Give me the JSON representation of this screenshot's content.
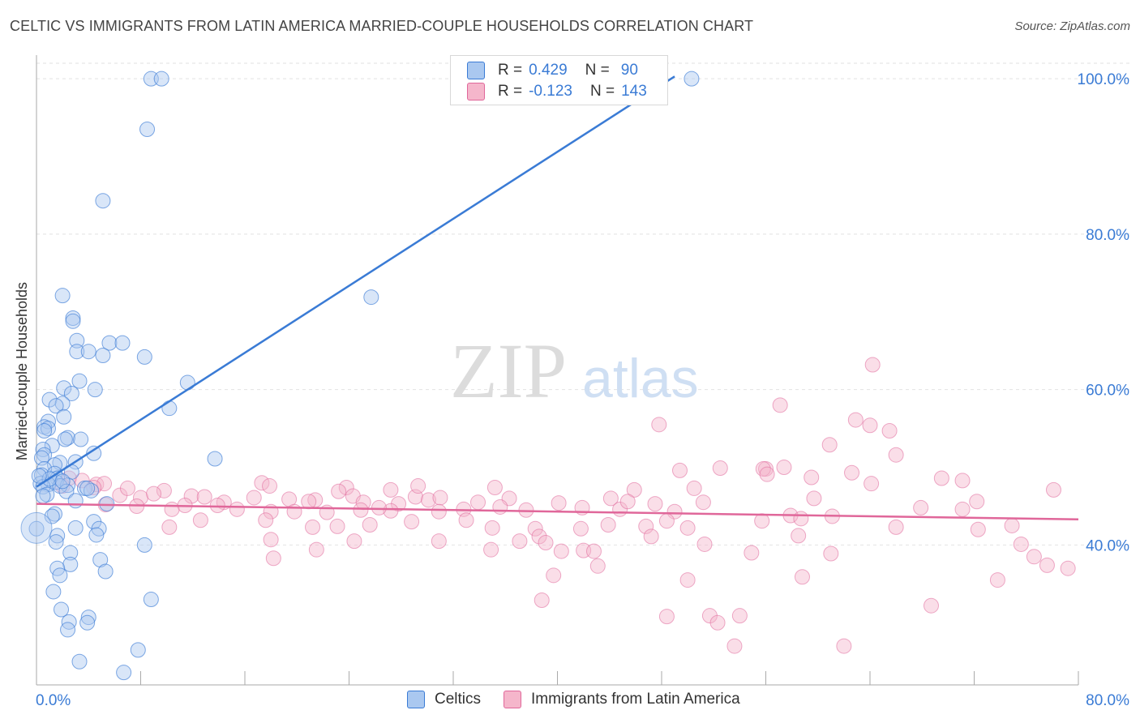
{
  "header": {
    "title": "CELTIC VS IMMIGRANTS FROM LATIN AMERICA MARRIED-COUPLE HOUSEHOLDS CORRELATION CHART",
    "source": "Source: ZipAtlas.com"
  },
  "watermark": {
    "zip": "ZIP",
    "atlas": "atlas"
  },
  "colors": {
    "blue": "#3a7bd5",
    "blue_fill": "#aac8f0",
    "pink": "#e0679a",
    "pink_fill": "#f5b6cb",
    "grid": "#e2e2e2",
    "axis_label": "#3a7bd5"
  },
  "legend": {
    "r_label": "R =",
    "n_label": "N =",
    "rows": [
      {
        "name": "Celtics",
        "r": "0.429",
        "n": "90",
        "color": "#aac8f0",
        "stroke": "#3a7bd5"
      },
      {
        "name": "Immigrants from Latin America",
        "r": "-0.123",
        "n": "143",
        "color": "#f5b6cb",
        "stroke": "#e0679a"
      }
    ]
  },
  "chart_data": {
    "type": "scatter",
    "title": "CELTIC VS IMMIGRANTS FROM LATIN AMERICA MARRIED-COUPLE HOUSEHOLDS CORRELATION CHART",
    "xlabel": "",
    "ylabel": "Married-couple Households",
    "xlim": [
      0,
      80
    ],
    "ylim": [
      22,
      102
    ],
    "x_tick_labels": [
      "0.0%",
      "80.0%"
    ],
    "y_ticks": [
      40,
      60,
      80,
      100
    ],
    "y_tick_labels": [
      "40.0%",
      "60.0%",
      "80.0%",
      "100.0%"
    ],
    "grid": true,
    "series": [
      {
        "name": "Celtics",
        "r": 0.429,
        "n": 90,
        "trend": [
          [
            0.0,
            47.5
          ],
          [
            49.0,
            100.3
          ]
        ],
        "points": [
          [
            8.8,
            100
          ],
          [
            9.6,
            100
          ],
          [
            50.3,
            100
          ],
          [
            8.5,
            93.5
          ],
          [
            5.1,
            84.3
          ],
          [
            2.0,
            72.1
          ],
          [
            25.7,
            71.9
          ],
          [
            2.8,
            69.2
          ],
          [
            2.8,
            68.8
          ],
          [
            3.1,
            66.3
          ],
          [
            5.6,
            66.0
          ],
          [
            6.6,
            66.0
          ],
          [
            3.1,
            64.9
          ],
          [
            4.0,
            64.9
          ],
          [
            5.1,
            64.4
          ],
          [
            8.3,
            64.2
          ],
          [
            3.3,
            61.1
          ],
          [
            11.6,
            60.9
          ],
          [
            2.1,
            60.2
          ],
          [
            4.5,
            60.0
          ],
          [
            2.7,
            59.5
          ],
          [
            1.0,
            58.7
          ],
          [
            2.0,
            58.2
          ],
          [
            1.5,
            57.9
          ],
          [
            10.2,
            57.6
          ],
          [
            2.1,
            56.5
          ],
          [
            0.9,
            55.9
          ],
          [
            0.6,
            55.2
          ],
          [
            0.9,
            55.0
          ],
          [
            0.6,
            54.7
          ],
          [
            2.4,
            53.8
          ],
          [
            2.2,
            53.6
          ],
          [
            3.4,
            53.6
          ],
          [
            1.2,
            52.8
          ],
          [
            0.5,
            52.3
          ],
          [
            0.6,
            51.6
          ],
          [
            4.4,
            51.8
          ],
          [
            13.7,
            51.1
          ],
          [
            0.4,
            51.2
          ],
          [
            1.8,
            50.6
          ],
          [
            1.4,
            50.3
          ],
          [
            3.0,
            50.7
          ],
          [
            0.6,
            49.8
          ],
          [
            2.7,
            49.4
          ],
          [
            0.4,
            49.0
          ],
          [
            1.4,
            49.2
          ],
          [
            1.6,
            48.6
          ],
          [
            1.5,
            48.1
          ],
          [
            0.9,
            47.8
          ],
          [
            0.3,
            47.9
          ],
          [
            0.5,
            47.5
          ],
          [
            2.4,
            47.7
          ],
          [
            1.8,
            47.6
          ],
          [
            3.7,
            47.3
          ],
          [
            4.2,
            47.0
          ],
          [
            3.9,
            47.3
          ],
          [
            0.8,
            46.5
          ],
          [
            0.5,
            46.3
          ],
          [
            2.3,
            46.9
          ],
          [
            3.0,
            45.7
          ],
          [
            5.4,
            45.3
          ],
          [
            1.4,
            44.0
          ],
          [
            1.2,
            43.7
          ],
          [
            4.4,
            43.0
          ],
          [
            0.0,
            42.1
          ],
          [
            3.0,
            42.2
          ],
          [
            4.8,
            42.1
          ],
          [
            4.6,
            41.3
          ],
          [
            1.6,
            41.2
          ],
          [
            1.5,
            40.4
          ],
          [
            8.3,
            40.0
          ],
          [
            2.6,
            39.0
          ],
          [
            4.9,
            38.1
          ],
          [
            2.6,
            37.5
          ],
          [
            1.6,
            37.0
          ],
          [
            5.3,
            36.6
          ],
          [
            1.8,
            36.1
          ],
          [
            1.3,
            34.0
          ],
          [
            8.8,
            33.0
          ],
          [
            1.9,
            31.7
          ],
          [
            4.0,
            30.7
          ],
          [
            2.5,
            30.1
          ],
          [
            3.9,
            30.0
          ],
          [
            2.4,
            29.1
          ],
          [
            7.8,
            26.5
          ],
          [
            3.3,
            25.0
          ],
          [
            6.7,
            23.6
          ],
          [
            1.0,
            48.5
          ],
          [
            2.0,
            48.2
          ],
          [
            0.2,
            48.9
          ]
        ]
      },
      {
        "name": "Immigrants from Latin America",
        "r": -0.123,
        "n": 143,
        "trend": [
          [
            0.0,
            45.3
          ],
          [
            80.0,
            43.3
          ]
        ],
        "points": [
          [
            64.2,
            63.2
          ],
          [
            57.1,
            58.0
          ],
          [
            62.9,
            56.1
          ],
          [
            47.8,
            55.5
          ],
          [
            64.0,
            55.4
          ],
          [
            65.5,
            54.7
          ],
          [
            60.9,
            52.9
          ],
          [
            66.0,
            51.6
          ],
          [
            57.4,
            50.0
          ],
          [
            56.0,
            49.8
          ],
          [
            49.4,
            49.6
          ],
          [
            52.5,
            49.9
          ],
          [
            55.8,
            49.8
          ],
          [
            56.1,
            49.1
          ],
          [
            59.5,
            48.7
          ],
          [
            62.6,
            49.3
          ],
          [
            69.5,
            48.6
          ],
          [
            71.1,
            48.3
          ],
          [
            64.1,
            47.9
          ],
          [
            3.5,
            48.3
          ],
          [
            2.5,
            48.6
          ],
          [
            4.6,
            47.8
          ],
          [
            5.2,
            47.9
          ],
          [
            17.3,
            48.0
          ],
          [
            17.9,
            47.6
          ],
          [
            23.8,
            47.4
          ],
          [
            23.2,
            46.9
          ],
          [
            27.2,
            47.1
          ],
          [
            35.2,
            47.4
          ],
          [
            45.9,
            47.1
          ],
          [
            50.5,
            47.3
          ],
          [
            78.1,
            47.1
          ],
          [
            2.0,
            47.6
          ],
          [
            4.4,
            47.4
          ],
          [
            6.4,
            46.4
          ],
          [
            7.0,
            47.3
          ],
          [
            9.8,
            47.0
          ],
          [
            8.0,
            46.1
          ],
          [
            9.0,
            46.6
          ],
          [
            11.9,
            46.3
          ],
          [
            12.9,
            46.2
          ],
          [
            14.4,
            45.5
          ],
          [
            16.7,
            46.1
          ],
          [
            19.4,
            45.9
          ],
          [
            21.4,
            45.8
          ],
          [
            24.3,
            46.3
          ],
          [
            25.1,
            45.5
          ],
          [
            27.8,
            45.3
          ],
          [
            29.1,
            46.2
          ],
          [
            30.1,
            45.8
          ],
          [
            31.0,
            46.1
          ],
          [
            33.9,
            45.5
          ],
          [
            36.3,
            46.0
          ],
          [
            40.1,
            45.4
          ],
          [
            44.1,
            46.0
          ],
          [
            47.5,
            45.3
          ],
          [
            51.2,
            45.5
          ],
          [
            59.7,
            46.0
          ],
          [
            72.2,
            45.6
          ],
          [
            5.3,
            45.2
          ],
          [
            7.7,
            45.0
          ],
          [
            10.4,
            44.6
          ],
          [
            11.4,
            45.1
          ],
          [
            13.9,
            45.1
          ],
          [
            15.4,
            44.6
          ],
          [
            18.0,
            44.3
          ],
          [
            19.8,
            44.3
          ],
          [
            22.3,
            44.2
          ],
          [
            24.9,
            44.5
          ],
          [
            27.2,
            44.4
          ],
          [
            30.9,
            44.3
          ],
          [
            32.8,
            44.6
          ],
          [
            35.6,
            44.9
          ],
          [
            37.6,
            44.5
          ],
          [
            41.9,
            44.8
          ],
          [
            44.8,
            44.6
          ],
          [
            49.0,
            44.3
          ],
          [
            57.9,
            43.8
          ],
          [
            61.1,
            43.7
          ],
          [
            67.9,
            44.8
          ],
          [
            71.1,
            44.6
          ],
          [
            10.2,
            42.3
          ],
          [
            17.6,
            43.2
          ],
          [
            21.2,
            42.3
          ],
          [
            23.1,
            42.4
          ],
          [
            25.6,
            42.6
          ],
          [
            28.8,
            43.0
          ],
          [
            33.0,
            43.2
          ],
          [
            35.0,
            42.2
          ],
          [
            38.3,
            42.1
          ],
          [
            41.8,
            42.1
          ],
          [
            43.9,
            42.6
          ],
          [
            46.8,
            42.4
          ],
          [
            48.4,
            43.1
          ],
          [
            50.0,
            42.2
          ],
          [
            55.7,
            43.1
          ],
          [
            58.7,
            43.4
          ],
          [
            66.0,
            42.3
          ],
          [
            72.3,
            42.0
          ],
          [
            74.9,
            42.5
          ],
          [
            18.0,
            40.7
          ],
          [
            24.4,
            40.5
          ],
          [
            30.9,
            40.5
          ],
          [
            37.1,
            40.5
          ],
          [
            38.6,
            41.1
          ],
          [
            39.1,
            40.3
          ],
          [
            42.0,
            39.3
          ],
          [
            47.2,
            41.1
          ],
          [
            51.3,
            40.1
          ],
          [
            58.5,
            41.2
          ],
          [
            75.6,
            40.1
          ],
          [
            21.5,
            39.4
          ],
          [
            34.9,
            39.4
          ],
          [
            40.3,
            39.2
          ],
          [
            42.8,
            39.2
          ],
          [
            54.9,
            39.0
          ],
          [
            61.0,
            38.9
          ],
          [
            76.6,
            38.5
          ],
          [
            18.2,
            38.3
          ],
          [
            43.1,
            37.3
          ],
          [
            77.6,
            37.4
          ],
          [
            79.2,
            37.0
          ],
          [
            39.7,
            36.1
          ],
          [
            58.8,
            35.9
          ],
          [
            50.0,
            35.5
          ],
          [
            73.8,
            35.5
          ],
          [
            38.8,
            32.9
          ],
          [
            68.7,
            32.2
          ],
          [
            51.7,
            30.9
          ],
          [
            48.4,
            30.8
          ],
          [
            62.0,
            27.0
          ],
          [
            53.6,
            27.0
          ],
          [
            54.0,
            30.9
          ],
          [
            52.3,
            30.0
          ],
          [
            26.3,
            44.8
          ],
          [
            12.6,
            43.2
          ],
          [
            20.9,
            45.6
          ],
          [
            29.3,
            47.6
          ],
          [
            45.4,
            45.6
          ]
        ]
      }
    ]
  }
}
